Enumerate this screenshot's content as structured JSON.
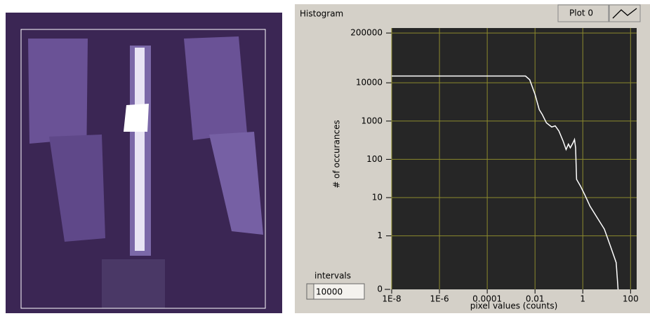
{
  "chart_data": {
    "type": "line",
    "title": "Histogram",
    "xlabel": "pixel values (counts)",
    "ylabel": "# of occurances",
    "xscale": "log",
    "yscale": "log",
    "xlim": [
      1e-08,
      180
    ],
    "ylim": [
      0.04,
      270000
    ],
    "xticks": [
      {
        "value": 1e-08,
        "label": "1E-8"
      },
      {
        "value": 1e-06,
        "label": "1E-6"
      },
      0.0001,
      0.01,
      1,
      100
    ],
    "yticks": [
      1,
      10,
      100,
      1000,
      10000,
      200000
    ],
    "y_bottom_label": "0",
    "grid": true,
    "grid_color": "#8c8a2e",
    "background": "#262626",
    "x": [
      1e-08,
      0.001,
      0.004,
      0.006,
      0.01,
      0.015,
      0.02,
      0.03,
      0.05,
      0.07,
      0.1,
      0.15,
      0.2,
      0.25,
      0.3,
      0.4,
      0.45,
      0.5,
      0.55,
      0.8,
      1.2,
      2,
      4,
      8,
      15,
      25,
      30
    ],
    "series": [
      {
        "name": "Plot 0",
        "color": "#ffffff",
        "values": [
          15000,
          15000,
          15000,
          12000,
          5000,
          2000,
          1500,
          900,
          700,
          750,
          550,
          300,
          180,
          250,
          200,
          280,
          330,
          200,
          30,
          20,
          12,
          6,
          3,
          1.5,
          0.5,
          0.2,
          0.04
        ]
      }
    ]
  },
  "controls": {
    "intervals": {
      "label": "intervals",
      "value": "10000"
    }
  }
}
